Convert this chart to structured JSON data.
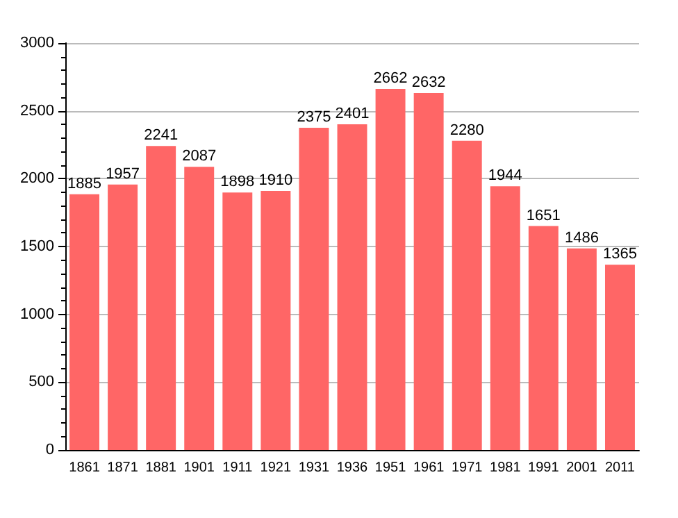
{
  "chart_data": {
    "type": "bar",
    "categories": [
      "1861",
      "1871",
      "1881",
      "1901",
      "1911",
      "1921",
      "1931",
      "1936",
      "1951",
      "1961",
      "1971",
      "1981",
      "1991",
      "2001",
      "2011"
    ],
    "values": [
      1885,
      1957,
      2241,
      2087,
      1898,
      1910,
      2375,
      2401,
      2662,
      2632,
      2280,
      1944,
      1651,
      1486,
      1365
    ],
    "color": "#ff6666",
    "ylim": [
      0,
      3000
    ],
    "yticks": [
      0,
      500,
      1000,
      1500,
      2000,
      2500,
      3000
    ],
    "grid": "y",
    "data_labels": true
  }
}
